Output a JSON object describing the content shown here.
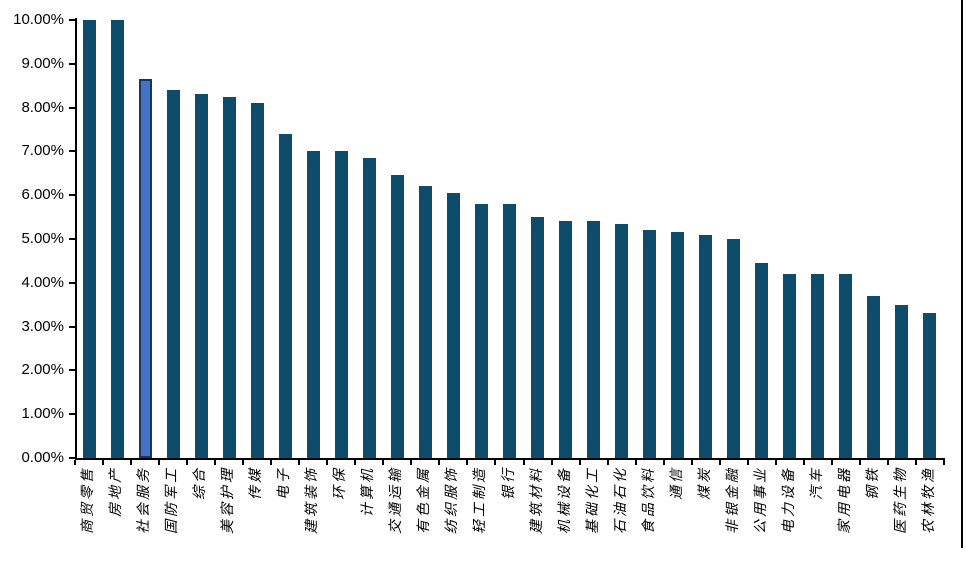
{
  "chart_data": {
    "type": "bar",
    "title": "",
    "xlabel": "",
    "ylabel": "",
    "categories": [
      "商贸零售",
      "房地产",
      "社会服务",
      "国防军工",
      "综合",
      "美容护理",
      "传媒",
      "电子",
      "建筑装饰",
      "环保",
      "计算机",
      "交通运输",
      "有色金属",
      "纺织服饰",
      "轻工制造",
      "银行",
      "建筑材料",
      "机械设备",
      "基础化工",
      "石油石化",
      "食品饮料",
      "通信",
      "煤炭",
      "非银金融",
      "公用事业",
      "电力设备",
      "汽车",
      "家用电器",
      "钢铁",
      "医药生物",
      "农林牧渔"
    ],
    "values": [
      10.0,
      10.0,
      8.65,
      8.4,
      8.3,
      8.25,
      8.1,
      7.4,
      7.0,
      7.0,
      6.85,
      6.45,
      6.2,
      6.05,
      5.8,
      5.8,
      5.5,
      5.4,
      5.4,
      5.35,
      5.2,
      5.15,
      5.1,
      5.0,
      4.45,
      4.2,
      4.2,
      4.2,
      3.7,
      3.5,
      3.3
    ],
    "highlight_index": 2,
    "highlight_category": "社会服务",
    "y_tick_labels": [
      "0.00%",
      "1.00%",
      "2.00%",
      "3.00%",
      "4.00%",
      "5.00%",
      "6.00%",
      "7.00%",
      "8.00%",
      "9.00%",
      "10.00%"
    ],
    "ylim": [
      0,
      10
    ],
    "grid": false,
    "legend_position": "none",
    "colors": {
      "bar": "#0E4C6B",
      "highlight_fill": "#4472C4",
      "highlight_border": "#17375E",
      "axis": "#000000",
      "background": "#FFFFFF"
    }
  }
}
